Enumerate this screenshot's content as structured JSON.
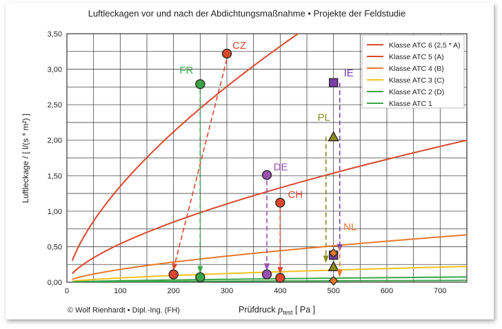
{
  "chart_data": {
    "type": "line",
    "title": "Luftleckagen vor und nach der Abdichtungsmaßnahme • Projekte der Feldstudie",
    "xlabel_main": "Prüfdruck ",
    "xlabel_sym": "p",
    "xlabel_sub": "test",
    "xlabel_unit": " [ Pa ]",
    "ylabel": "Luftleckage / [ l/(s * m²) ]",
    "credit": "© Wolf Rienhardt • Dipl.-Ing. (FH)",
    "xlim": [
      0,
      750
    ],
    "ylim": [
      0,
      3.5
    ],
    "xticks": [
      "0",
      "100",
      "200",
      "300",
      "400",
      "500",
      "600",
      "700"
    ],
    "yticks": [
      "0,00",
      "0,50",
      "1,00",
      "1,50",
      "2,00",
      "2,50",
      "3,00",
      "3,50"
    ],
    "grid": true,
    "legend": "top-right",
    "series": [
      {
        "name": "Klasse ATC 6 (2,5 * A)",
        "color": "#d9472b",
        "value_at_750": 5.0,
        "exponent": 0.65
      },
      {
        "name": "Klasse ATC 5 (A)",
        "color": "#d9472b",
        "value_at_750": 2.0,
        "exponent": 0.65
      },
      {
        "name": "Klasse ATC 4 (B)",
        "color": "#e8782a",
        "value_at_750": 0.667,
        "exponent": 0.65
      },
      {
        "name": "Klasse ATC 3 (C)",
        "color": "#f2c21a",
        "value_at_750": 0.222,
        "exponent": 0.65
      },
      {
        "name": "Klasse ATC 2 (D)",
        "color": "#3aa447",
        "value_at_750": 0.074,
        "exponent": 0.65
      },
      {
        "name": "Klasse ATC 1",
        "color": "#3aa447",
        "value_at_750": 0.025,
        "exponent": 0.65
      }
    ],
    "projects": [
      {
        "label": "FR",
        "color": "#3aa447",
        "marker": "circle",
        "before": [
          250,
          2.79
        ],
        "after": [
          250,
          0.07
        ]
      },
      {
        "label": "CZ",
        "color": "#d9472b",
        "marker": "circle",
        "before": [
          300,
          3.22
        ],
        "after": [
          200,
          0.11
        ]
      },
      {
        "label": "DE",
        "color": "#9b4fb0",
        "marker": "circle",
        "before": [
          375,
          1.51
        ],
        "after": [
          375,
          0.11
        ]
      },
      {
        "label": "CH",
        "color": "#d9472b",
        "marker": "circle",
        "before": [
          400,
          1.12
        ],
        "after": [
          400,
          0.06
        ]
      },
      {
        "label": "IE",
        "color": "#7b3fa6",
        "marker": "square",
        "before": [
          500,
          2.81
        ],
        "after": [
          500,
          0.38
        ]
      },
      {
        "label": "PL",
        "color": "#8a8a1e",
        "marker": "triangle",
        "before": [
          500,
          2.05
        ],
        "after": [
          500,
          0.22
        ]
      },
      {
        "label": "NL",
        "color": "#e8782a",
        "marker": "diamond",
        "before": [
          500,
          0.41
        ],
        "after": [
          500,
          0.02
        ]
      }
    ]
  }
}
